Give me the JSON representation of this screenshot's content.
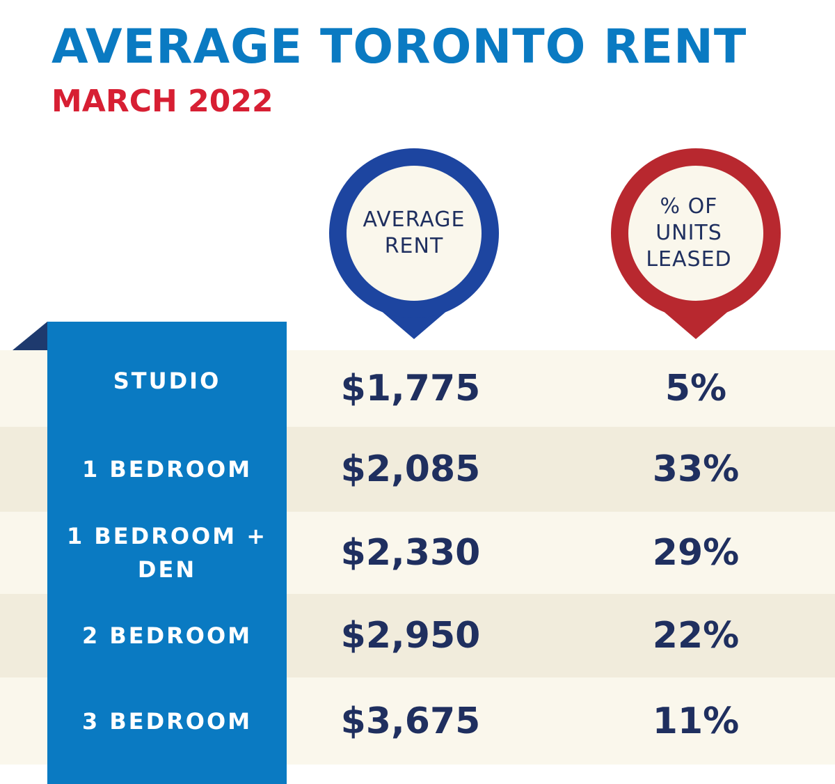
{
  "header": {
    "title": "AVERAGE TORONTO RENT",
    "subtitle": "MARCH 2022"
  },
  "columns": {
    "rent": "AVERAGE RENT",
    "leased": "% OF UNITS LEASED"
  },
  "table": {
    "rows": [
      [
        "STUDIO",
        "$1,775",
        "5%"
      ],
      [
        "1 BEDROOM",
        "$2,085",
        "33%"
      ],
      [
        "1 BEDROOM + DEN",
        "$2,330",
        "29%"
      ],
      [
        "2 BEDROOM",
        "$2,950",
        "22%"
      ],
      [
        "3 BEDROOM",
        "$3,675",
        "11%"
      ]
    ]
  }
}
